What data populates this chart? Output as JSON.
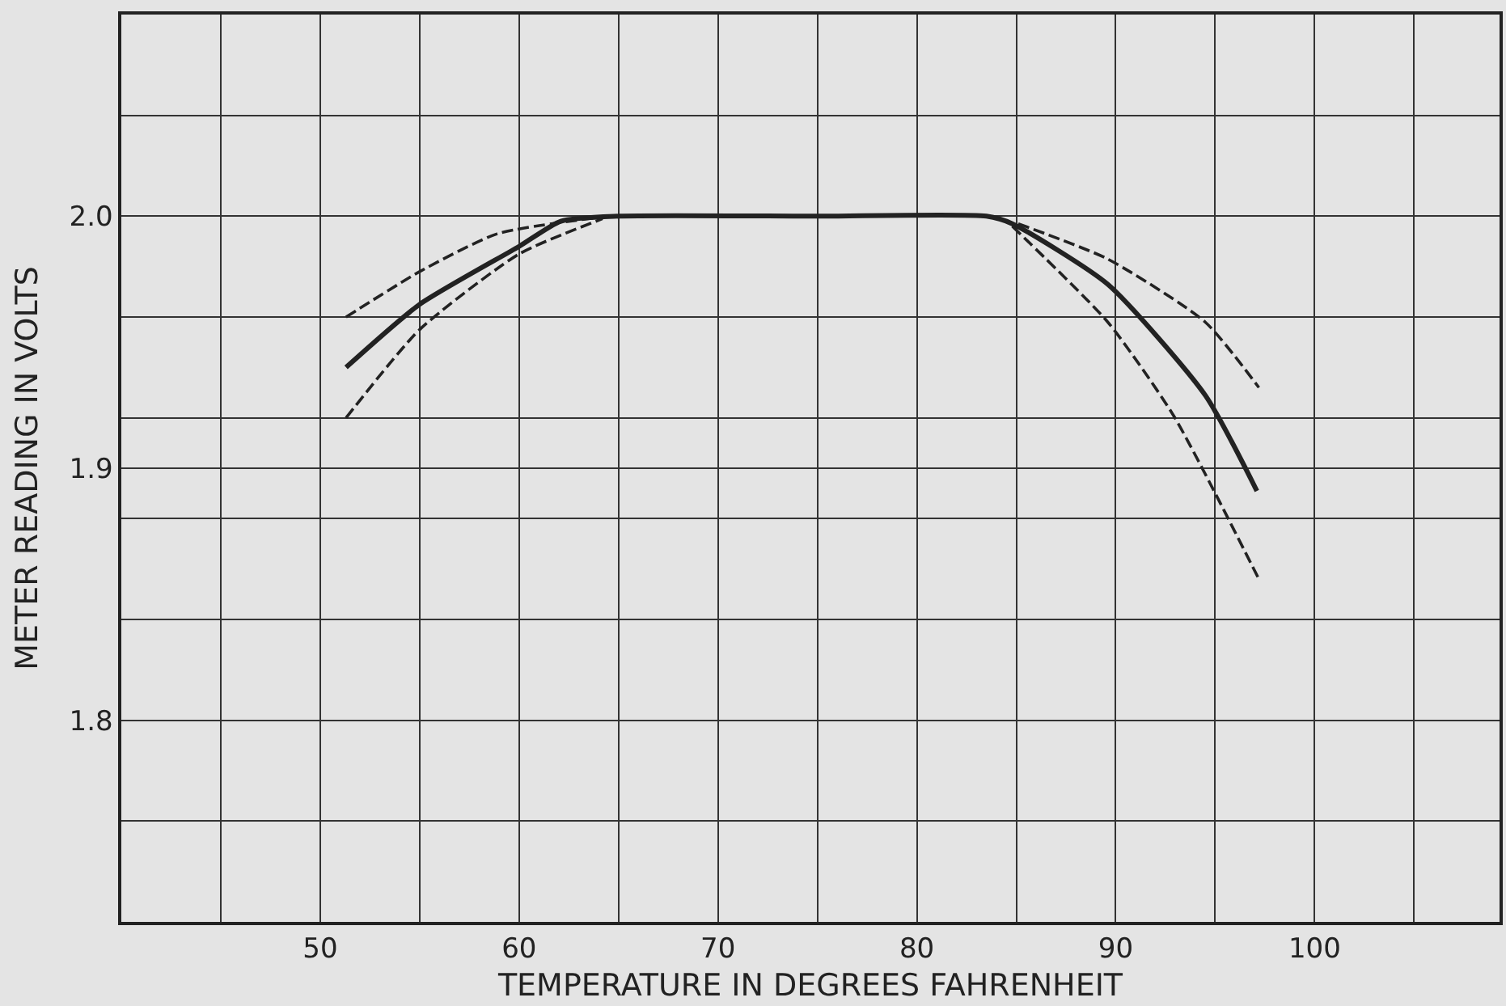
{
  "chart_data": {
    "type": "line",
    "xlabel": "TEMPERATURE IN DEGREES FAHRENHEIT",
    "ylabel": "METER READING IN VOLTS",
    "xlim": [
      40,
      109.3
    ],
    "ylim": [
      1.72,
      2.08
    ],
    "xticks": [
      {
        "value": 40,
        "label": null
      },
      {
        "value": 45,
        "label": null
      },
      50,
      {
        "value": 55,
        "label": null
      },
      60,
      {
        "value": 65,
        "label": null
      },
      70,
      {
        "value": 75,
        "label": null
      },
      80,
      {
        "value": 85,
        "label": null
      },
      90,
      {
        "value": 95,
        "label": null
      },
      100,
      {
        "value": 105,
        "label": null
      }
    ],
    "yticks": [
      {
        "value": 1.72,
        "label": null
      },
      {
        "value": 1.76,
        "label": null
      },
      {
        "value": 1.8,
        "label": "1.8"
      },
      {
        "value": 1.84,
        "label": null
      },
      {
        "value": 1.88,
        "label": null
      },
      {
        "value": 1.9,
        "label": "1.9"
      },
      {
        "value": 1.92,
        "label": null
      },
      {
        "value": 1.96,
        "label": null
      },
      {
        "value": 2.0,
        "label": "2.0"
      },
      {
        "value": 2.04,
        "label": null
      },
      {
        "value": 2.08,
        "label": null
      }
    ],
    "grid": true,
    "marker": "none",
    "series": [
      {
        "color": "#222222",
        "line_style": "solid",
        "x": [
          51.3,
          55,
          60,
          62.1,
          65,
          75,
          83.5,
          84.8,
          89.6,
          94.5,
          97.1
        ],
        "values": [
          1.94,
          1.965,
          1.988,
          1.998,
          2.0,
          2.0,
          2.0,
          1.997,
          1.973,
          1.929,
          1.891
        ]
      },
      {
        "color": "#222222",
        "line_style": "dashed",
        "x": [
          51.3,
          55,
          58.9,
          64.5
        ],
        "values": [
          1.96,
          1.978,
          1.993,
          2.0
        ]
      },
      {
        "color": "#222222",
        "line_style": "dashed",
        "x": [
          51.3,
          55,
          60,
          64.2
        ],
        "values": [
          1.92,
          1.955,
          1.985,
          1.999
        ]
      },
      {
        "color": "#222222",
        "line_style": "dashed",
        "x": [
          85.1,
          89.6,
          94.5,
          97.2
        ],
        "values": [
          1.997,
          1.983,
          1.958,
          1.932
        ]
      },
      {
        "color": "#222222",
        "line_style": "dashed",
        "x": [
          84.8,
          89.6,
          92.9,
          97.2
        ],
        "values": [
          1.996,
          1.958,
          1.921,
          1.856
        ]
      }
    ]
  }
}
